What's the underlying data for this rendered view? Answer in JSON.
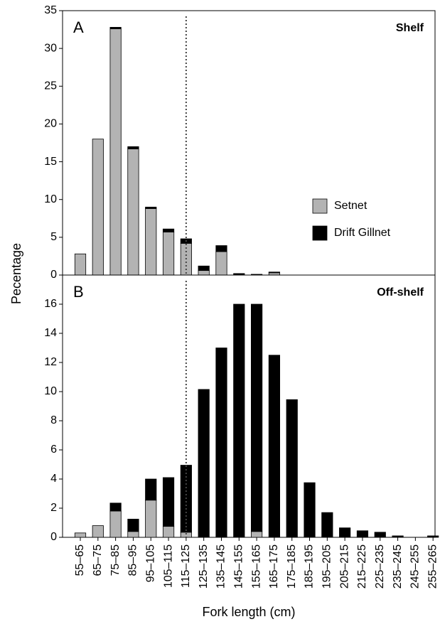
{
  "chart_data": [
    {
      "type": "stacked_bar",
      "panel_label": "A",
      "title": "Shelf",
      "y_label": "Pecentage",
      "series": [
        {
          "name": "Setnet",
          "color": "#b3b3b3",
          "values": [
            2.8,
            18,
            32.6,
            16.7,
            8.8,
            5.7,
            4.2,
            0.6,
            3.1,
            0,
            0,
            0.3,
            0,
            0,
            0,
            0,
            0,
            0,
            0,
            0,
            0
          ]
        },
        {
          "name": "Drift Gillnet",
          "color": "#000000",
          "values": [
            0,
            0,
            0.2,
            0.3,
            0.2,
            0.4,
            0.6,
            0.6,
            0.8,
            0.2,
            0.1,
            0.1,
            0,
            0,
            0,
            0,
            0,
            0,
            0,
            0,
            0
          ]
        }
      ],
      "ylim": [
        0,
        35
      ],
      "yticks": [
        0,
        5,
        10,
        15,
        20,
        25,
        30,
        35
      ],
      "legend": "right",
      "reference_line": "115–125"
    },
    {
      "type": "stacked_bar",
      "panel_label": "B",
      "title": "Off-shelf",
      "x_label": "Fork length (cm)",
      "categories": [
        "55–65",
        "65–75",
        "75–85",
        "85–95",
        "95–105",
        "105–115",
        "115–125",
        "125–135",
        "135–145",
        "145–155",
        "155–165",
        "165–175",
        "175–185",
        "185–195",
        "195–205",
        "205–215",
        "215–225",
        "225–235",
        "235–245",
        "245–255",
        "255–265"
      ],
      "series": [
        {
          "color": "#b3b3b3",
          "values": [
            0.3,
            0.8,
            1.8,
            0.4,
            2.55,
            0.75,
            0.35,
            0,
            0,
            0,
            0.4,
            0,
            0,
            0,
            0,
            0,
            0,
            0,
            0,
            0,
            0
          ]
        },
        {
          "color": "#000000",
          "values": [
            0,
            0,
            0.55,
            0.85,
            1.45,
            3.35,
            4.6,
            10.15,
            13,
            16,
            15.6,
            12.5,
            9.45,
            3.75,
            1.7,
            0.65,
            0.45,
            0.35,
            0.1,
            0,
            0.1
          ]
        }
      ],
      "ylim": [
        0,
        18
      ],
      "yticks": [
        0,
        2,
        4,
        6,
        8,
        10,
        12,
        14,
        16
      ],
      "reference_line": "115–125"
    }
  ]
}
